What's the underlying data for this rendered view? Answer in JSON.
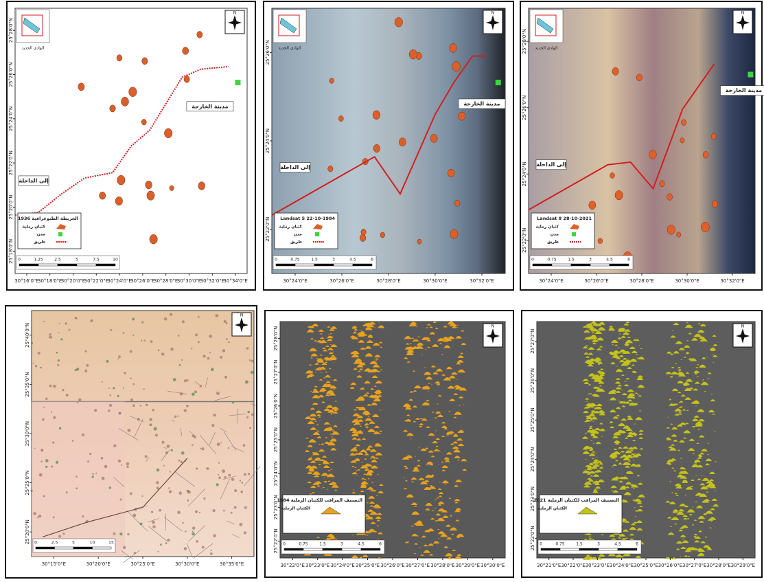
{
  "panels": [
    {
      "north": "N",
      "inset_label": "الوادي الجديد",
      "city": "مدينة الخارجة",
      "to_dakhla": "إلى الداخلة",
      "legend": {
        "title": "الخريطة الطبوغرافية 1936",
        "items": [
          "كثبان رملية",
          "مدن",
          "طريق"
        ]
      },
      "scale": [
        "0",
        "1.25",
        "2.5",
        "5",
        "7.5",
        "10"
      ],
      "yticks": [
        "25°28'0\"N",
        "25°26'0\"N",
        "25°24'0\"N",
        "25°22'0\"N",
        "25°20'0\"N",
        "25°18'0\"N"
      ],
      "xticks": [
        "30°16'0\"E",
        "30°18'0\"E",
        "30°20'0\"E",
        "30°22'0\"E",
        "30°24'0\"E",
        "30°26'0\"E",
        "30°28'0\"E",
        "30°30'0\"E",
        "30°32'0\"E",
        "30°34'0\"E"
      ]
    },
    {
      "north": "N",
      "inset_label": "الوادي الجديد",
      "city": "مدينة الخارجة",
      "to_dakhla": "إلى الداخلة",
      "legend": {
        "title": "Landsat 5  22-10-1984",
        "items": [
          "كثبان رملية",
          "مدن",
          "طريق"
        ]
      },
      "scale": [
        "0",
        "0.75",
        "1.5",
        "3",
        "4.5",
        "6"
      ],
      "yticks": [
        "25°26'0\"N",
        "25°24'0\"N",
        "25°22'0\"N"
      ],
      "xticks": [
        "30°24'0\"E",
        "30°26'0\"E",
        "30°28'0\"E",
        "30°30'0\"E",
        "30°32'0\"E"
      ]
    },
    {
      "north": "N",
      "inset_label": "الوادي الجديد",
      "city": "مدينة الخارجة",
      "to_dakhla": "إلى الداخلة",
      "legend": {
        "title": "Landsat 8  28-10-2021",
        "items": [
          "كثبان رملية",
          "مدن",
          "طريق"
        ]
      },
      "scale": [
        "0",
        "0.75",
        "1.5",
        "3",
        "4.5",
        "6"
      ],
      "yticks": [
        "25°28'0\"N",
        "25°26'0\"N",
        "25°24'0\"N",
        "25°22'0\"N"
      ],
      "xticks": [
        "30°24'0\"E",
        "30°26'0\"E",
        "30°28'0\"E",
        "30°30'0\"E",
        "30°32'0\"E"
      ]
    },
    {
      "north": "N",
      "scale": [
        "0",
        "2.5",
        "5",
        "10",
        "15"
      ],
      "yticks": [
        "25°40'0\"N",
        "25°35'0\"N",
        "25°30'0\"N",
        "25°25'0\"N",
        "25°20'0\"N"
      ],
      "xticks": [
        "30°15'0\"E",
        "30°20'0\"E",
        "30°25'0\"E",
        "30°30'0\"E",
        "30°35'0\"E"
      ]
    },
    {
      "north": "N",
      "legend": {
        "title": "التصنيف المراقب للكثبان الرملية 1984",
        "items": [
          "الكثبان الرملية"
        ]
      },
      "scale": [
        "0",
        "0.75",
        "1.5",
        "3",
        "4.5",
        "6"
      ],
      "yticks": [
        "25°28'0\"N",
        "25°27'0\"N",
        "25°26'0\"N",
        "25°25'0\"N",
        "25°24'0\"N",
        "25°23'0\"N",
        "25°22'0\"N"
      ],
      "xticks": [
        "30°22'0\"E",
        "30°23'0\"E",
        "30°24'0\"E",
        "30°25'0\"E",
        "30°26'0\"E",
        "30°27'0\"E",
        "30°28'0\"E",
        "30°29'0\"E",
        "30°30'0\"E"
      ]
    },
    {
      "north": "N",
      "legend": {
        "title": "التصنيف المراقب للكثبان الرملية 2021",
        "items": [
          "الكثبان الرملية"
        ]
      },
      "scale": [
        "0",
        "0.75",
        "1.5",
        "3",
        "4.5",
        "6"
      ],
      "yticks": [
        "25°27'0\"N",
        "25°26'0\"N",
        "25°25'0\"N",
        "25°24'0\"N",
        "25°23'0\"N",
        "25°22'0\"N"
      ],
      "xticks": [
        "30°21'0\"E",
        "30°22'0\"E",
        "30°23'0\"E",
        "30°24'0\"E",
        "30°25'0\"E",
        "30°26'0\"E",
        "30°27'0\"E",
        "30°28'0\"E",
        "30°29'0\"E"
      ]
    }
  ]
}
